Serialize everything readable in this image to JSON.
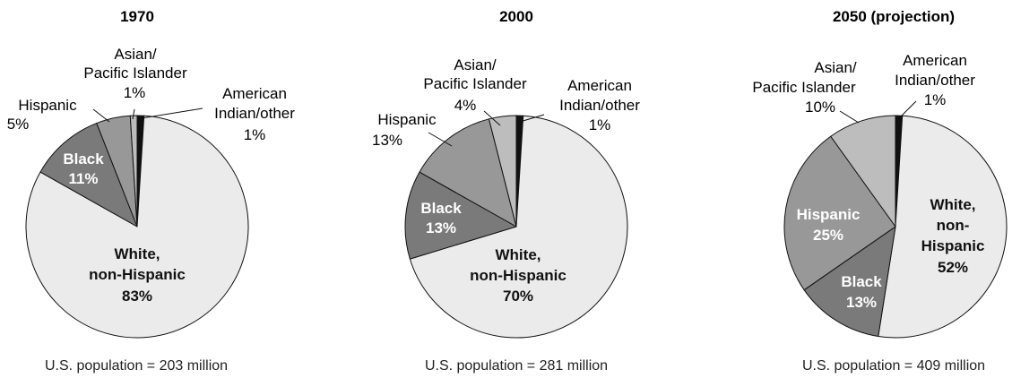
{
  "colors": {
    "white_non_hispanic": "#ebebeb",
    "black": "#7a7a7a",
    "hispanic": "#989898",
    "asian_pacific_islander": "#bdbdbd",
    "american_indian_other": "#111111",
    "stroke": "#111111"
  },
  "chart_data": [
    {
      "type": "pie",
      "title": "1970",
      "caption": "U.S. population = 203 million",
      "slices": [
        {
          "label": "American Indian/other",
          "value": 1,
          "pct_text": "1%"
        },
        {
          "label": "White, non-Hispanic",
          "value": 83,
          "pct_text": "83%"
        },
        {
          "label": "Black",
          "value": 11,
          "pct_text": "11%"
        },
        {
          "label": "Hispanic",
          "value": 5,
          "pct_text": "5%"
        },
        {
          "label": "Asian/ Pacific Islander",
          "value": 1,
          "pct_text": "1%"
        }
      ]
    },
    {
      "type": "pie",
      "title": "2000",
      "caption": "U.S. population = 281 million",
      "slices": [
        {
          "label": "American Indian/other",
          "value": 1,
          "pct_text": "1%"
        },
        {
          "label": "White, non-Hispanic",
          "value": 70,
          "pct_text": "70%"
        },
        {
          "label": "Black",
          "value": 13,
          "pct_text": "13%"
        },
        {
          "label": "Hispanic",
          "value": 13,
          "pct_text": "13%"
        },
        {
          "label": "Asian/ Pacific Islander",
          "value": 4,
          "pct_text": "4%"
        }
      ]
    },
    {
      "type": "pie",
      "title": "2050 (projection)",
      "caption": "U.S. population = 409 million",
      "slices": [
        {
          "label": "American Indian/other",
          "value": 1,
          "pct_text": "1%"
        },
        {
          "label": "White, non-Hispanic",
          "value": 52,
          "pct_text": "52%"
        },
        {
          "label": "Black",
          "value": 13,
          "pct_text": "13%"
        },
        {
          "label": "Hispanic",
          "value": 25,
          "pct_text": "25%"
        },
        {
          "label": "Asian/ Pacific Islander",
          "value": 10,
          "pct_text": "10%"
        }
      ]
    }
  ],
  "text": {
    "c0": {
      "title": "1970",
      "white_l1": "White,",
      "white_l2": "non-Hispanic",
      "white_pct": "83%",
      "black_l1": "Black",
      "black_pct": "11%",
      "hisp_l1": "Hispanic",
      "hisp_pct": "5%",
      "asian_l1": "Asian/",
      "asian_l2": "Pacific Islander",
      "asian_pct": "1%",
      "amind_l1": "American",
      "amind_l2": "Indian/other",
      "amind_pct": "1%",
      "caption": "U.S. population = 203 million"
    },
    "c1": {
      "title": "2000",
      "white_l1": "White,",
      "white_l2": "non-Hispanic",
      "white_pct": "70%",
      "black_l1": "Black",
      "black_pct": "13%",
      "hisp_l1": "Hispanic",
      "hisp_pct": "13%",
      "asian_l1": "Asian/",
      "asian_l2": "Pacific Islander",
      "asian_pct": "4%",
      "amind_l1": "American",
      "amind_l2": "Indian/other",
      "amind_pct": "1%",
      "caption": "U.S. population = 281 million"
    },
    "c2": {
      "title": "2050 (projection)",
      "white_l1": "White,",
      "white_l2": "non-",
      "white_l3": "Hispanic",
      "white_pct": "52%",
      "black_l1": "Black",
      "black_pct": "13%",
      "hisp_l1": "Hispanic",
      "hisp_pct": "25%",
      "asian_l1": "Asian/",
      "asian_l2": "Pacific Islander",
      "asian_pct": "10%",
      "amind_l1": "American",
      "amind_l2": "Indian/other",
      "amind_pct": "1%",
      "caption": "U.S. population = 409 million"
    }
  }
}
